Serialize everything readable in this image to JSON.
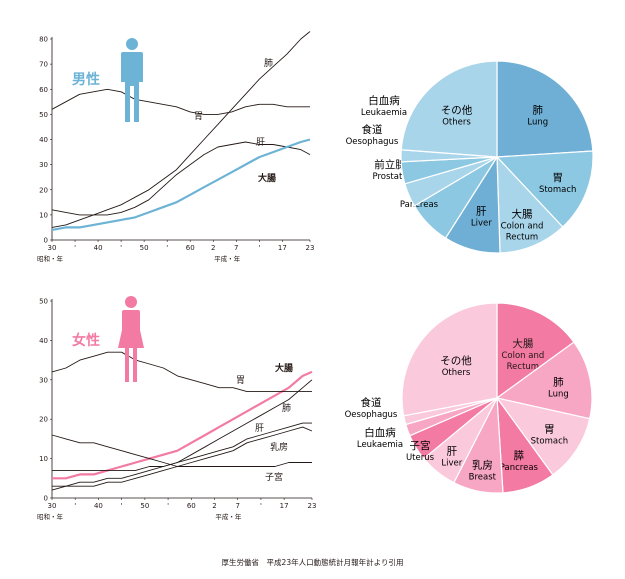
{
  "colors": {
    "male_accent": "#6cb3d6",
    "female_accent": "#f27aa3",
    "line_dark": "#231815"
  },
  "male_chart": {
    "gender_label": "男性",
    "person_icon": "male-person-icon",
    "yticks": [
      "0",
      "10",
      "20",
      "30",
      "40",
      "50",
      "60",
      "70",
      "80"
    ],
    "xticks": [
      "30",
      "'",
      "40",
      "'",
      "50",
      "'",
      "60",
      "2",
      "7",
      "'",
      "17",
      "23"
    ],
    "era_showa": "昭和・年",
    "era_heisei": "平成・年",
    "labels": {
      "lung": "肺",
      "stomach": "胃",
      "liver": "肝",
      "colon": "大腸"
    }
  },
  "female_chart": {
    "gender_label": "女性",
    "person_icon": "female-person-icon",
    "yticks": [
      "0",
      "10",
      "20",
      "30",
      "40",
      "50"
    ],
    "xticks": [
      "30",
      "'",
      "40",
      "'",
      "50",
      "'",
      "60",
      "2",
      "7",
      "'",
      "17",
      "23"
    ],
    "era_showa": "昭和・年",
    "era_heisei": "平成・年",
    "labels": {
      "colon": "大腸",
      "stomach": "胃",
      "lung": "肺",
      "liver": "肝",
      "breast": "乳房",
      "uterus": "子宮"
    }
  },
  "chart_data": [
    {
      "type": "line",
      "ylim": [
        0,
        80
      ],
      "x_years": [
        1955,
        1958,
        1961,
        1964,
        1967,
        1970,
        1973,
        1976,
        1979,
        1982,
        1985,
        1988,
        1991,
        1994,
        1997,
        2000,
        2003,
        2006,
        2009,
        2011
      ],
      "series": [
        {
          "name": "肺",
          "values": [
            5,
            6,
            8,
            10,
            12,
            14,
            17,
            20,
            24,
            28,
            34,
            40,
            46,
            52,
            58,
            64,
            69,
            74,
            80,
            83
          ]
        },
        {
          "name": "胃",
          "values": [
            52,
            55,
            58,
            59,
            60,
            59,
            56,
            55,
            54,
            53,
            51,
            50,
            50,
            51,
            53,
            54,
            54,
            53,
            53,
            53
          ]
        },
        {
          "name": "肝",
          "values": [
            12,
            11,
            10,
            10,
            10,
            11,
            13,
            16,
            21,
            26,
            30,
            34,
            37,
            38,
            39,
            38,
            38,
            37,
            36,
            34
          ]
        },
        {
          "name": "大腸",
          "values": [
            4,
            5,
            5,
            6,
            7,
            8,
            9,
            11,
            13,
            15,
            18,
            21,
            24,
            27,
            30,
            33,
            35,
            37,
            39,
            40
          ]
        }
      ]
    },
    {
      "type": "line",
      "ylim": [
        0,
        50
      ],
      "x_years": [
        1955,
        1958,
        1961,
        1964,
        1967,
        1970,
        1973,
        1976,
        1979,
        1982,
        1985,
        1988,
        1991,
        1994,
        1997,
        2000,
        2003,
        2006,
        2009,
        2011
      ],
      "series": [
        {
          "name": "大腸",
          "values": [
            5,
            5,
            6,
            6,
            7,
            8,
            9,
            10,
            11,
            12,
            14,
            16,
            18,
            20,
            22,
            24,
            26,
            28,
            31,
            32
          ]
        },
        {
          "name": "胃",
          "values": [
            32,
            33,
            35,
            36,
            37,
            37,
            35,
            34,
            33,
            31,
            30,
            29,
            28,
            28,
            27,
            27,
            27,
            27,
            27,
            27
          ]
        },
        {
          "name": "肺",
          "values": [
            3,
            3,
            4,
            4,
            5,
            5,
            6,
            7,
            8,
            9,
            11,
            13,
            15,
            17,
            19,
            21,
            23,
            25,
            28,
            30
          ]
        },
        {
          "name": "肝",
          "values": [
            7,
            7,
            7,
            7,
            7,
            7,
            7,
            8,
            8,
            9,
            10,
            11,
            12,
            13,
            15,
            16,
            17,
            18,
            19,
            19
          ]
        },
        {
          "name": "乳房",
          "values": [
            2,
            3,
            3,
            3,
            4,
            4,
            5,
            6,
            7,
            8,
            9,
            10,
            11,
            12,
            14,
            15,
            16,
            17,
            18,
            17
          ]
        },
        {
          "name": "子宮",
          "values": [
            16,
            15,
            14,
            14,
            13,
            12,
            11,
            10,
            9,
            8,
            8,
            8,
            8,
            8,
            8,
            8,
            8,
            9,
            9,
            9
          ]
        }
      ]
    },
    {
      "type": "pie",
      "slices": [
        {
          "jp": "肺",
          "en": "Lung",
          "value": 24.0,
          "color": "#6fafd5"
        },
        {
          "jp": "胃",
          "en": "Stomach",
          "value": 14.0,
          "color": "#8cc8e2"
        },
        {
          "jp": "大腸",
          "en": "Colon and Rectum",
          "value": 11.5,
          "color": "#a9d5ea"
        },
        {
          "jp": "肝",
          "en": "Liver",
          "value": 9.5,
          "color": "#6fafd5"
        },
        {
          "jp": "膵",
          "en": "Pancreas",
          "value": 7.5,
          "color": "#8cc8e2"
        },
        {
          "jp": "前立腺",
          "en": "Prostate",
          "value": 4.0,
          "color": "#a9d5ea"
        },
        {
          "jp": "食道",
          "en": "Oesophagus",
          "value": 3.7,
          "color": "#8cc8e2"
        },
        {
          "jp": "白血病",
          "en": "Leukaemia",
          "value": 2.0,
          "color": "#a9d5ea"
        },
        {
          "jp": "その他",
          "en": "Others",
          "value": 23.8,
          "color": "#a9d5ea"
        }
      ]
    },
    {
      "type": "pie",
      "slices": [
        {
          "jp": "大腸",
          "en": "Colon and Rectum",
          "value": 15.0,
          "color": "#f27aa3"
        },
        {
          "jp": "肺",
          "en": "Lung",
          "value": 13.5,
          "color": "#f7a6c4"
        },
        {
          "jp": "胃",
          "en": "Stomach",
          "value": 11.5,
          "color": "#fbc9dc"
        },
        {
          "jp": "膵",
          "en": "Pancreas",
          "value": 9.0,
          "color": "#f27aa3"
        },
        {
          "jp": "乳房",
          "en": "Breast",
          "value": 8.5,
          "color": "#f7a6c4"
        },
        {
          "jp": "肝",
          "en": "Liver",
          "value": 6.5,
          "color": "#fbc9dc"
        },
        {
          "jp": "子宮",
          "en": "Uterus",
          "value": 4.5,
          "color": "#f27aa3"
        },
        {
          "jp": "白血病",
          "en": "Leukaemia",
          "value": 2.0,
          "color": "#f7a6c4"
        },
        {
          "jp": "食道",
          "en": "Oesophagus",
          "value": 1.5,
          "color": "#fbc9dc"
        },
        {
          "jp": "その他",
          "en": "Others",
          "value": 28.0,
          "color": "#fbc9dc"
        }
      ]
    }
  ],
  "source": "厚生労働省　平成23年人口動態統計月報年計より引用"
}
